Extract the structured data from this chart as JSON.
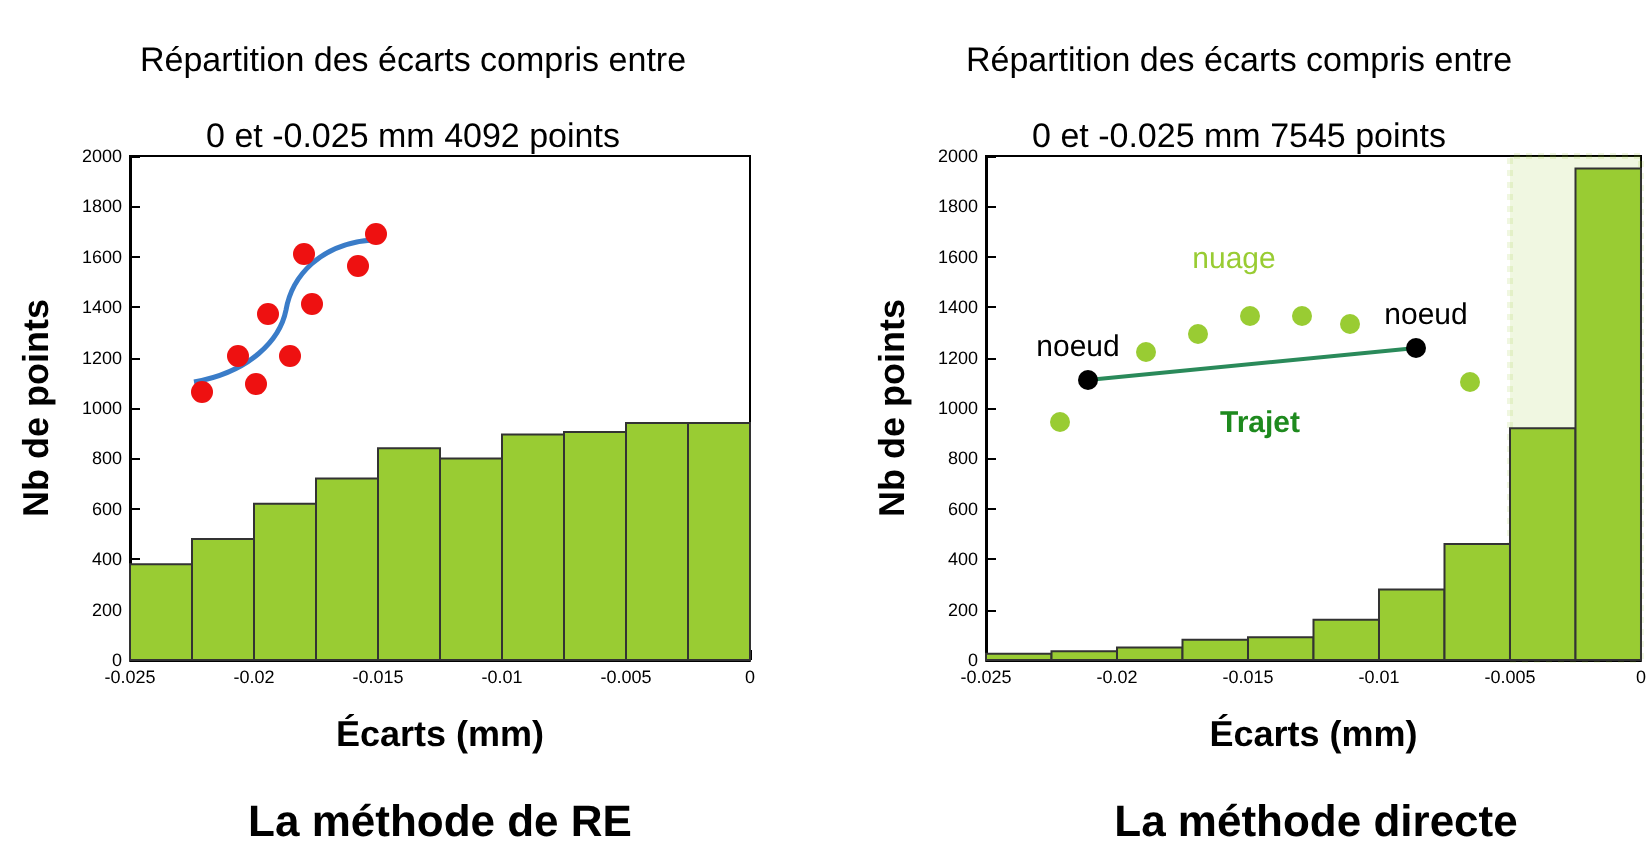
{
  "chart_data": [
    {
      "type": "histogram",
      "title": "Répartition des écarts compris entre\n0 et -0.025 mm 4092 points",
      "xlabel": "Écarts (mm)",
      "ylabel": "Nb de points",
      "bins": [
        -0.025,
        -0.0225,
        -0.02,
        -0.0175,
        -0.015,
        -0.0125,
        -0.01,
        -0.0075,
        -0.005,
        -0.0025,
        0
      ],
      "values": [
        380,
        480,
        620,
        720,
        840,
        800,
        895,
        905,
        940,
        940
      ],
      "color": "#99cc33",
      "xlim": [
        -0.025,
        0
      ],
      "xticks": [
        -0.025,
        -0.02,
        -0.015,
        -0.01,
        -0.005,
        0
      ],
      "ylim": [
        0,
        2000
      ],
      "yticks": [
        0,
        200,
        400,
        600,
        800,
        1000,
        1200,
        1400,
        1600,
        1800,
        2000
      ],
      "grid": false,
      "annotations": [
        "La méthode de RE"
      ]
    },
    {
      "type": "histogram",
      "title": "Répartition des écarts compris entre\n0 et -0.025 mm 7545 points",
      "xlabel": "Écarts (mm)",
      "ylabel": "Nb de points",
      "bins": [
        -0.025,
        -0.0225,
        -0.02,
        -0.0175,
        -0.015,
        -0.0125,
        -0.01,
        -0.0075,
        -0.005,
        -0.0025,
        0
      ],
      "values": [
        25,
        35,
        50,
        80,
        90,
        160,
        280,
        460,
        920,
        1950
      ],
      "color": "#99cc33",
      "xlim": [
        -0.025,
        0
      ],
      "xticks": [
        -0.025,
        -0.02,
        -0.015,
        -0.01,
        -0.005,
        0
      ],
      "ylim": [
        0,
        2000
      ],
      "yticks": [
        0,
        200,
        400,
        600,
        800,
        1000,
        1200,
        1400,
        1600,
        1800,
        2000
      ],
      "grid": false,
      "bands": [
        {
          "axis": "x",
          "from": -0.005,
          "to": 0,
          "color": "#99cc33"
        }
      ],
      "annotations": [
        "nuage",
        "noeud",
        "noeud",
        "Trajet",
        "La méthode directe"
      ]
    }
  ]
}
